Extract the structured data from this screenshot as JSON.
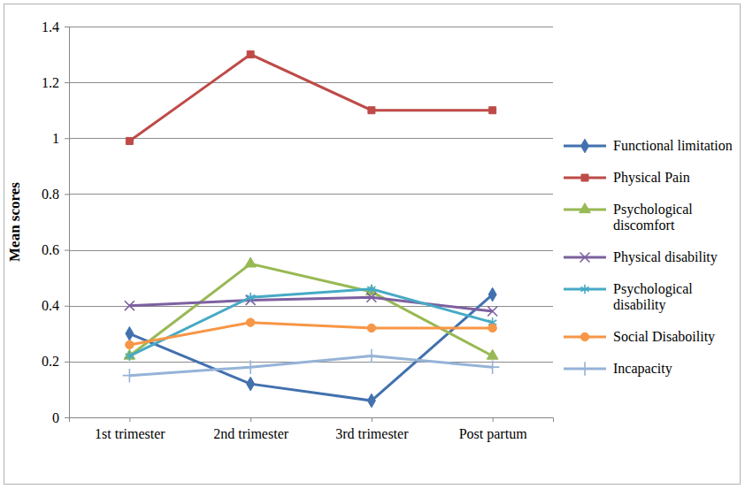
{
  "chart_data": {
    "type": "line",
    "y_label": "Mean scores",
    "categories": [
      "1st trimester",
      "2nd trimester",
      "3rd trimester",
      "Post partum"
    ],
    "series": [
      {
        "name": "Functional limitation",
        "color": "#4271ae",
        "marker": "diamond",
        "values": [
          0.3,
          0.12,
          0.06,
          0.44
        ]
      },
      {
        "name": "Physical Pain",
        "color": "#be4b48",
        "marker": "square",
        "values": [
          0.99,
          1.3,
          1.1,
          1.1
        ]
      },
      {
        "name": "Psychological discomfort",
        "color": "#98b954",
        "marker": "triangle",
        "values": [
          0.22,
          0.55,
          0.45,
          0.22
        ]
      },
      {
        "name": "Physical disability",
        "color": "#7d60a0",
        "marker": "x",
        "values": [
          0.4,
          0.42,
          0.43,
          0.38
        ]
      },
      {
        "name": "Psychological disability",
        "color": "#46aac5",
        "marker": "asterisk",
        "values": [
          0.22,
          0.43,
          0.46,
          0.34
        ]
      },
      {
        "name": "Social Disaboility",
        "color": "#f79646",
        "marker": "circle",
        "values": [
          0.26,
          0.34,
          0.32,
          0.32
        ]
      },
      {
        "name": "Incapacity",
        "color": "#95b3d7",
        "marker": "plus",
        "values": [
          0.15,
          0.18,
          0.22,
          0.18
        ]
      }
    ],
    "ylim": [
      0,
      1.4
    ],
    "yticks": [
      0,
      0.2,
      0.4,
      0.6,
      0.8,
      1,
      1.2,
      1.4
    ],
    "grid": true,
    "legend": "right"
  }
}
